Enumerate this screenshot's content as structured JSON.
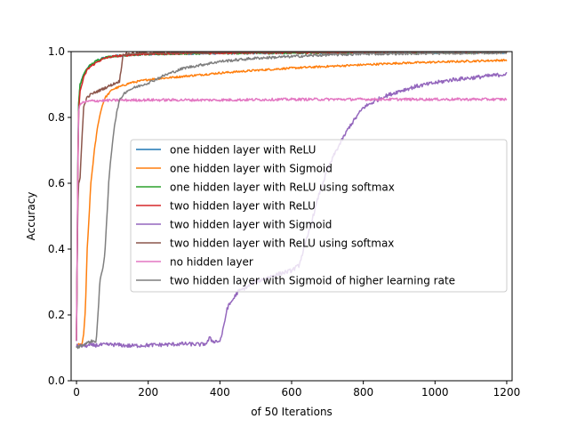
{
  "chart_data": {
    "type": "line",
    "title": "",
    "xlabel": "of 50 Iterations",
    "ylabel": "Accuracy",
    "xlim": [
      -15,
      1215
    ],
    "ylim": [
      0.0,
      1.0
    ],
    "xticks": [
      0,
      200,
      400,
      600,
      800,
      1000,
      1200
    ],
    "yticks": [
      0.0,
      0.2,
      0.4,
      0.6,
      0.8,
      1.0
    ],
    "grid": false,
    "legend_placement": "center-right",
    "series": [
      {
        "name": "one hidden layer with ReLU",
        "color": "#1f77b4",
        "x": [
          0,
          5,
          10,
          20,
          30,
          40,
          60,
          80,
          100,
          150,
          200,
          300,
          400,
          600,
          800,
          1000,
          1200
        ],
        "y": [
          0.12,
          0.82,
          0.9,
          0.93,
          0.95,
          0.96,
          0.975,
          0.982,
          0.986,
          0.99,
          0.992,
          0.994,
          0.995,
          0.996,
          0.997,
          0.997,
          0.997
        ],
        "noise": 0.003
      },
      {
        "name": "one hidden layer with Sigmoid",
        "color": "#ff7f0e",
        "x": [
          0,
          10,
          15,
          20,
          25,
          30,
          40,
          50,
          60,
          70,
          80,
          100,
          150,
          200,
          300,
          400,
          500,
          600,
          700,
          800,
          900,
          1000,
          1100,
          1200
        ],
        "y": [
          0.11,
          0.11,
          0.11,
          0.14,
          0.22,
          0.4,
          0.6,
          0.7,
          0.78,
          0.83,
          0.86,
          0.885,
          0.905,
          0.915,
          0.925,
          0.935,
          0.943,
          0.95,
          0.955,
          0.96,
          0.965,
          0.968,
          0.971,
          0.974
        ],
        "noise": 0.003
      },
      {
        "name": "one hidden layer with ReLU using softmax",
        "color": "#2ca02c",
        "x": [
          0,
          5,
          10,
          20,
          30,
          40,
          60,
          80,
          100,
          150,
          200,
          300,
          400,
          600,
          800,
          1000,
          1200
        ],
        "y": [
          0.12,
          0.83,
          0.9,
          0.93,
          0.95,
          0.96,
          0.975,
          0.982,
          0.986,
          0.99,
          0.992,
          0.994,
          0.995,
          0.996,
          0.997,
          0.997,
          0.997
        ],
        "noise": 0.003
      },
      {
        "name": "two hidden layer with ReLU",
        "color": "#d62728",
        "x": [
          0,
          5,
          10,
          20,
          30,
          40,
          60,
          80,
          100,
          150,
          200,
          300,
          400,
          600,
          800,
          1000,
          1200
        ],
        "y": [
          0.12,
          0.8,
          0.88,
          0.92,
          0.945,
          0.955,
          0.97,
          0.98,
          0.985,
          0.99,
          0.993,
          0.995,
          0.996,
          0.997,
          0.998,
          0.998,
          0.998
        ],
        "noise": 0.003
      },
      {
        "name": "two hidden layer with Sigmoid",
        "color": "#9467bd",
        "x": [
          0,
          50,
          100,
          150,
          200,
          250,
          300,
          350,
          365,
          370,
          380,
          400,
          410,
          420,
          450,
          500,
          550,
          600,
          620,
          640,
          660,
          680,
          700,
          720,
          740,
          760,
          780,
          800,
          850,
          900,
          950,
          1000,
          1050,
          1100,
          1150,
          1200
        ],
        "y": [
          0.105,
          0.108,
          0.11,
          0.106,
          0.108,
          0.11,
          0.112,
          0.11,
          0.115,
          0.13,
          0.12,
          0.12,
          0.16,
          0.22,
          0.27,
          0.3,
          0.32,
          0.335,
          0.35,
          0.42,
          0.5,
          0.58,
          0.64,
          0.69,
          0.73,
          0.77,
          0.8,
          0.83,
          0.86,
          0.88,
          0.895,
          0.905,
          0.915,
          0.92,
          0.926,
          0.932
        ],
        "noise": 0.006
      },
      {
        "name": "two hidden layer with ReLU using softmax",
        "color": "#8c564b",
        "x": [
          0,
          3,
          6,
          10,
          15,
          20,
          25,
          30,
          40,
          50,
          60,
          80,
          100,
          120,
          125,
          128,
          130,
          140,
          160,
          200,
          300,
          400,
          600,
          800,
          1000,
          1200
        ],
        "y": [
          0.15,
          0.52,
          0.6,
          0.62,
          0.73,
          0.83,
          0.85,
          0.86,
          0.87,
          0.875,
          0.88,
          0.89,
          0.9,
          0.91,
          0.95,
          0.98,
          0.99,
          0.993,
          0.995,
          0.996,
          0.997,
          0.998,
          0.998,
          0.998,
          0.998,
          0.998
        ],
        "noise": 0.004
      },
      {
        "name": "no hidden layer",
        "color": "#e377c2",
        "x": [
          0,
          3,
          6,
          10,
          20,
          40,
          100,
          200,
          400,
          600,
          800,
          1000,
          1200
        ],
        "y": [
          0.12,
          0.6,
          0.82,
          0.84,
          0.846,
          0.85,
          0.852,
          0.853,
          0.853,
          0.855,
          0.855,
          0.855,
          0.855
        ],
        "noise": 0.004
      },
      {
        "name": "two hidden layer with Sigmoid of higher learning rate",
        "color": "#7f7f7f",
        "x": [
          0,
          20,
          40,
          55,
          60,
          65,
          70,
          75,
          80,
          85,
          90,
          95,
          100,
          105,
          110,
          115,
          120,
          130,
          140,
          160,
          200,
          250,
          300,
          350,
          400,
          500,
          600,
          700,
          800,
          1000,
          1200
        ],
        "y": [
          0.1,
          0.11,
          0.12,
          0.12,
          0.2,
          0.3,
          0.33,
          0.35,
          0.4,
          0.5,
          0.6,
          0.67,
          0.72,
          0.77,
          0.8,
          0.83,
          0.85,
          0.87,
          0.88,
          0.89,
          0.905,
          0.93,
          0.95,
          0.96,
          0.97,
          0.98,
          0.985,
          0.99,
          0.993,
          0.995,
          0.997
        ],
        "noise": 0.004
      }
    ]
  }
}
